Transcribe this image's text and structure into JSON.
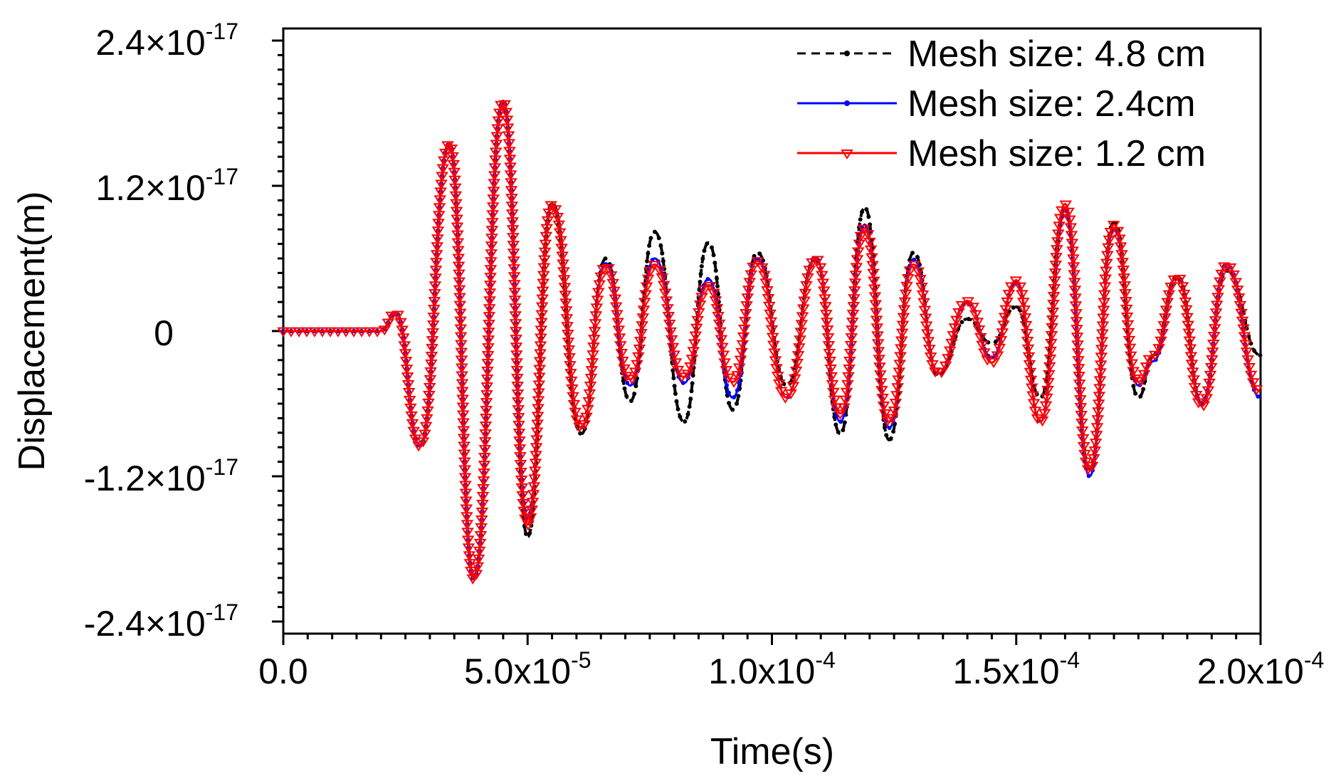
{
  "chart_data": {
    "type": "line",
    "title": "",
    "xlabel": "Time(s)",
    "ylabel": "Displacement(m)",
    "xlim": [
      0,
      0.0002
    ],
    "ylim": [
      -2.5e-17,
      2.5e-17
    ],
    "x_ticks": [
      {
        "value": 0,
        "label": "0.0",
        "exp": ""
      },
      {
        "value": 5e-05,
        "label": "5.0x10",
        "exp": "-5"
      },
      {
        "value": 0.0001,
        "label": "1.0x10",
        "exp": "-4"
      },
      {
        "value": 0.00015,
        "label": "1.5x10",
        "exp": "-4"
      },
      {
        "value": 0.0002,
        "label": "2.0x10",
        "exp": "-4"
      }
    ],
    "y_ticks": [
      {
        "value": 2.4e-17,
        "label": "2.4×10",
        "exp": "-17"
      },
      {
        "value": 1.2e-17,
        "label": "1.2×10",
        "exp": "-17"
      },
      {
        "value": 0,
        "label": "0",
        "exp": ""
      },
      {
        "value": -1.2e-17,
        "label": "-1.2×10",
        "exp": "-17"
      },
      {
        "value": -2.4e-17,
        "label": "-2.4×10",
        "exp": "-17"
      }
    ],
    "legend_position": "top-right",
    "x": [
      0,
      2e-05,
      2.3e-05,
      2.8e-05,
      3.4e-05,
      3.9e-05,
      4.5e-05,
      5e-05,
      5.5e-05,
      6.1e-05,
      6.6e-05,
      7.1e-05,
      7.6e-05,
      8.2e-05,
      8.7e-05,
      9.2e-05,
      9.7e-05,
      0.000103,
      0.000109,
      0.000114,
      0.000119,
      0.000124,
      0.000129,
      0.000134,
      0.00014,
      0.000145,
      0.00015,
      0.000155,
      0.00016,
      0.000165,
      0.00017,
      0.000175,
      0.000178,
      0.000183,
      0.000188,
      0.000193,
      0.0002
    ],
    "series": [
      {
        "name": "Mesh size: 4.8 cm",
        "color": "#000000",
        "dash": "dashed",
        "values": [
          0,
          0,
          1.5e-18,
          -9.5e-18,
          1.55e-17,
          -2.05e-17,
          1.9e-17,
          -1.7e-17,
          1.05e-17,
          -8.5e-18,
          6e-18,
          -5.8e-18,
          8.2e-18,
          -7.5e-18,
          7.3e-18,
          -6.5e-18,
          6.5e-18,
          -4.5e-18,
          6e-18,
          -8.5e-18,
          1.02e-17,
          -9e-18,
          6.5e-18,
          -3.6e-18,
          1e-18,
          -1e-18,
          2e-18,
          -5.5e-18,
          1e-17,
          -1.15e-17,
          9e-18,
          -5.5e-18,
          -2e-18,
          4.5e-18,
          -6e-18,
          5e-18,
          -2e-18
        ]
      },
      {
        "name": "Mesh size: 2.4cm",
        "color": "#0000ff",
        "dash": "solid",
        "values": [
          0,
          0,
          1.5e-18,
          -9.5e-18,
          1.55e-17,
          -2.05e-17,
          1.9e-17,
          -1.55e-17,
          1.05e-17,
          -8e-18,
          5.6e-18,
          -4.5e-18,
          6e-18,
          -4.3e-18,
          4.3e-18,
          -5.5e-18,
          6e-18,
          -5.5e-18,
          6.1e-18,
          -7.5e-18,
          8.8e-18,
          -8e-18,
          5.9e-18,
          -3.5e-18,
          2.4e-18,
          -2.2e-18,
          4e-18,
          -7.5e-18,
          1e-17,
          -1.2e-17,
          8.5e-18,
          -4.5e-18,
          -2.5e-18,
          4.5e-18,
          -6e-18,
          5.5e-18,
          -5.5e-18
        ]
      },
      {
        "name": "Mesh size: 1.2 cm",
        "color": "#ff0000",
        "dash": "solid",
        "values": [
          0,
          0,
          1.5e-18,
          -9.5e-18,
          1.55e-17,
          -2.05e-17,
          1.9e-17,
          -1.6e-17,
          1.05e-17,
          -8e-18,
          5.4e-18,
          -4e-18,
          5.5e-18,
          -3.8e-18,
          3.8e-18,
          -4.2e-18,
          5.8e-18,
          -5.5e-18,
          6e-18,
          -6.8e-18,
          8.5e-18,
          -7.5e-18,
          5.5e-18,
          -3.5e-18,
          2.5e-18,
          -2.6e-18,
          4.2e-18,
          -7.5e-18,
          1.05e-17,
          -1.15e-17,
          8.8e-18,
          -4.2e-18,
          -2e-18,
          4.5e-18,
          -6.2e-18,
          5.5e-18,
          -5e-18
        ]
      }
    ]
  }
}
